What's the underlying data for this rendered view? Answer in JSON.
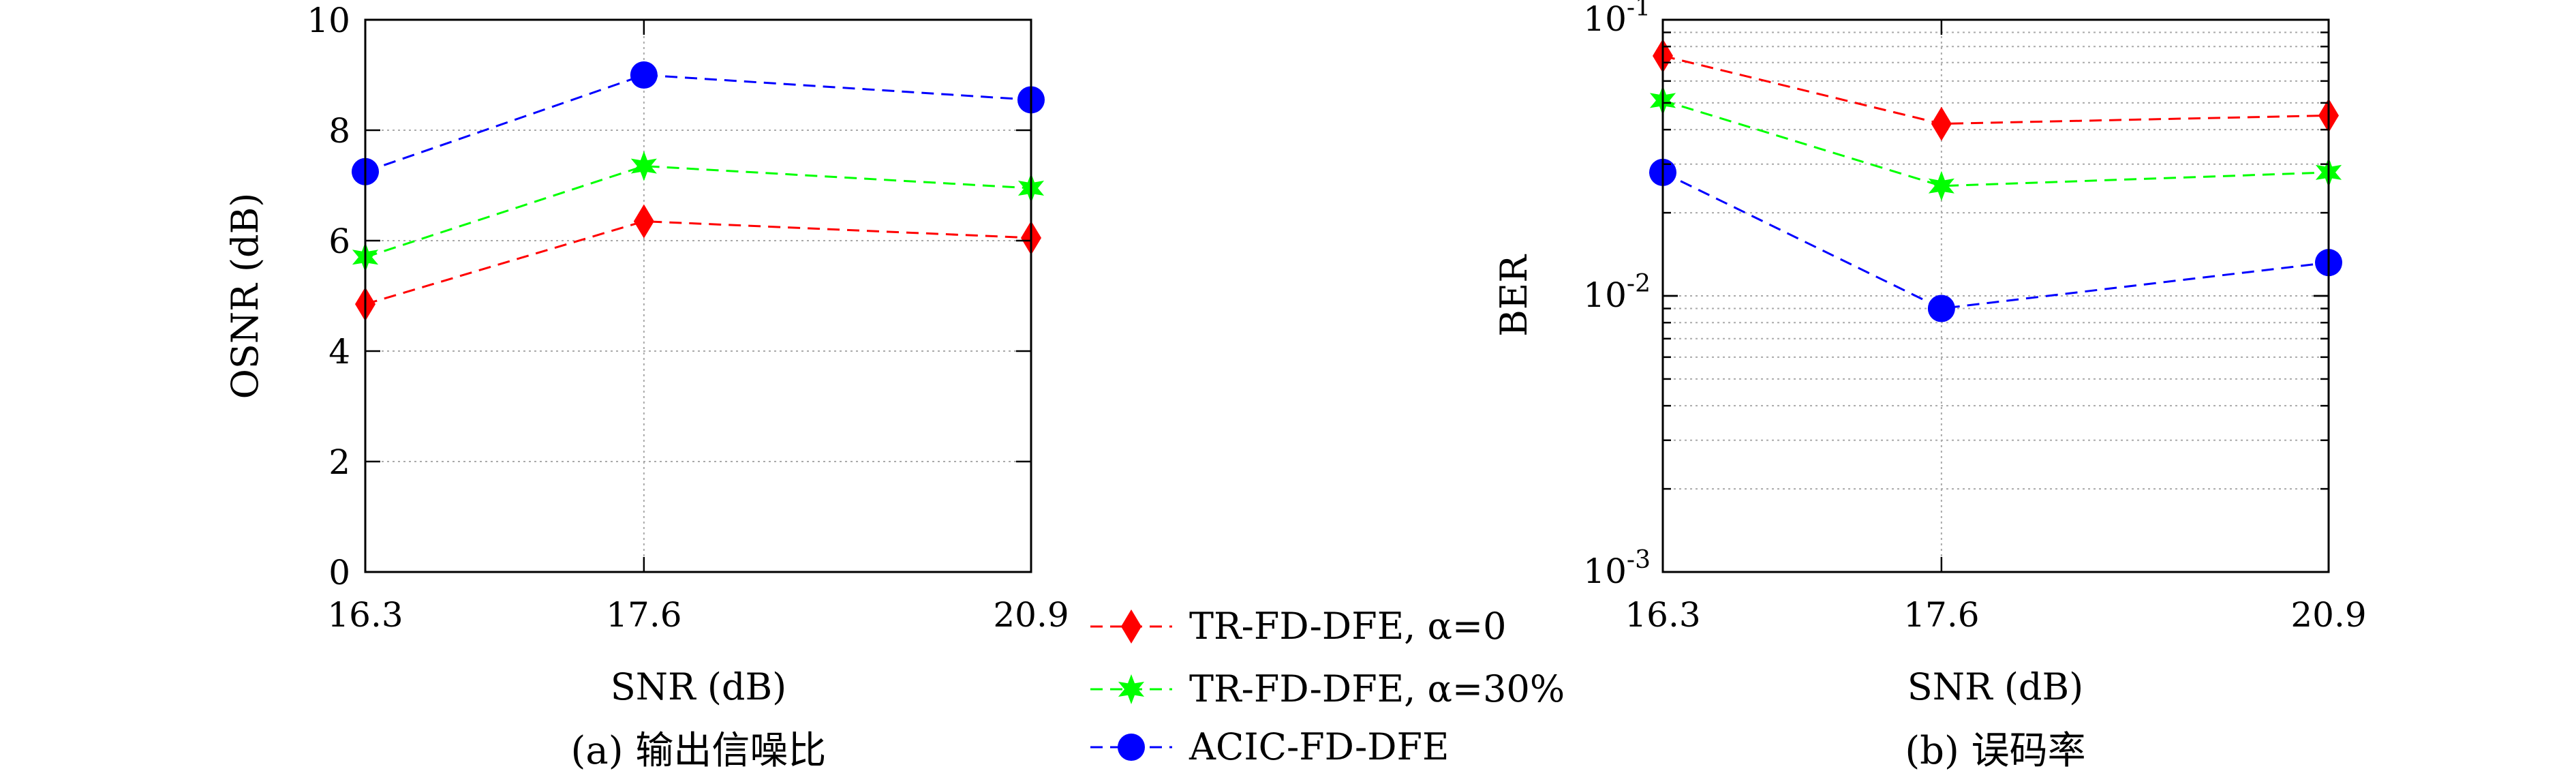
{
  "chart_data": [
    {
      "type": "line",
      "panel": "a",
      "categories": [
        "16.3",
        "17.6",
        "20.9"
      ],
      "xlabel": "SNR (dB)",
      "ylabel": "OSNR (dB)",
      "caption": "(a) 输出信噪比",
      "ylim": [
        0,
        10
      ],
      "yticks": [
        "0",
        "2",
        "4",
        "6",
        "8",
        "10"
      ],
      "yscale": "linear",
      "grid": true,
      "series": [
        {
          "name": "TR-FD-DFE, α=0",
          "color": "#ff0000",
          "marker": "diamond",
          "values": [
            4.85,
            6.35,
            6.05
          ]
        },
        {
          "name": "TR-FD-DFE, α=30%",
          "color": "#00ff00",
          "marker": "star",
          "values": [
            5.7,
            7.35,
            6.95
          ]
        },
        {
          "name": "ACIC-FD-DFE",
          "color": "#0000ff",
          "marker": "circle",
          "values": [
            7.25,
            9.0,
            8.55
          ]
        }
      ]
    },
    {
      "type": "line",
      "panel": "b",
      "categories": [
        "16.3",
        "17.6",
        "20.9"
      ],
      "xlabel": "SNR (dB)",
      "ylabel": "BER",
      "caption": "(b) 误码率",
      "ylim": [
        0.001,
        0.1
      ],
      "ytick_bases": [
        "10",
        "10",
        "10"
      ],
      "ytick_exponents": [
        "-3",
        "-2",
        "-1"
      ],
      "yscale": "log",
      "grid": true,
      "series": [
        {
          "name": "TR-FD-DFE, α=0",
          "color": "#ff0000",
          "marker": "diamond",
          "values": [
            0.074,
            0.042,
            0.045
          ]
        },
        {
          "name": "TR-FD-DFE, α=30%",
          "color": "#00ff00",
          "marker": "star",
          "values": [
            0.051,
            0.025,
            0.028
          ]
        },
        {
          "name": "ACIC-FD-DFE",
          "color": "#0000ff",
          "marker": "circle",
          "values": [
            0.028,
            0.009,
            0.0132
          ]
        }
      ]
    }
  ],
  "legend": {
    "placement": "bottom-center",
    "items": [
      {
        "label": "TR-FD-DFE, α=0",
        "color": "#ff0000",
        "marker": "diamond"
      },
      {
        "label": "TR-FD-DFE, α=30%",
        "color": "#00ff00",
        "marker": "star"
      },
      {
        "label": "ACIC-FD-DFE",
        "color": "#0000ff",
        "marker": "circle"
      }
    ]
  }
}
